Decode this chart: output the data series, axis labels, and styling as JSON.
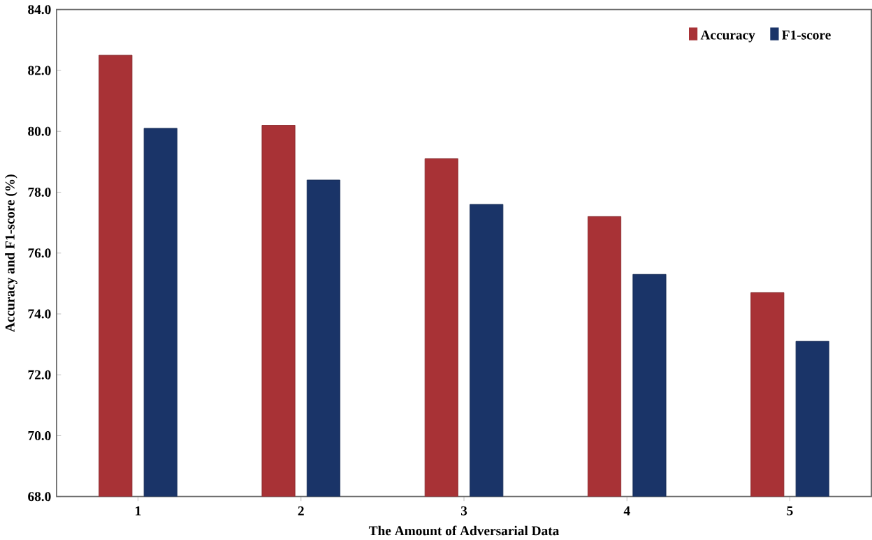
{
  "chart_data": {
    "type": "bar",
    "xlabel": "The Amount of Adversarial Data",
    "ylabel": "Accuracy and F1-score (%)",
    "categories": [
      "1",
      "2",
      "3",
      "4",
      "5"
    ],
    "series": [
      {
        "name": "Accuracy",
        "color": "#a83236",
        "values": [
          82.5,
          80.2,
          79.1,
          77.2,
          74.7
        ]
      },
      {
        "name": "F1-score",
        "color": "#1a3468",
        "values": [
          80.1,
          78.4,
          77.6,
          75.3,
          73.1
        ]
      }
    ],
    "ylim": [
      68,
      84
    ],
    "yticks": [
      {
        "value": 68,
        "label": "68.0"
      },
      {
        "value": 70,
        "label": "70.0"
      },
      {
        "value": 72,
        "label": "72.0"
      },
      {
        "value": 74,
        "label": "74.0"
      },
      {
        "value": 76,
        "label": "76.0"
      },
      {
        "value": 78,
        "label": "78.0"
      },
      {
        "value": 80,
        "label": "80.0"
      },
      {
        "value": 82,
        "label": "82.0"
      },
      {
        "value": 84,
        "label": "84.0"
      }
    ],
    "grid": false,
    "legend": "top right"
  }
}
